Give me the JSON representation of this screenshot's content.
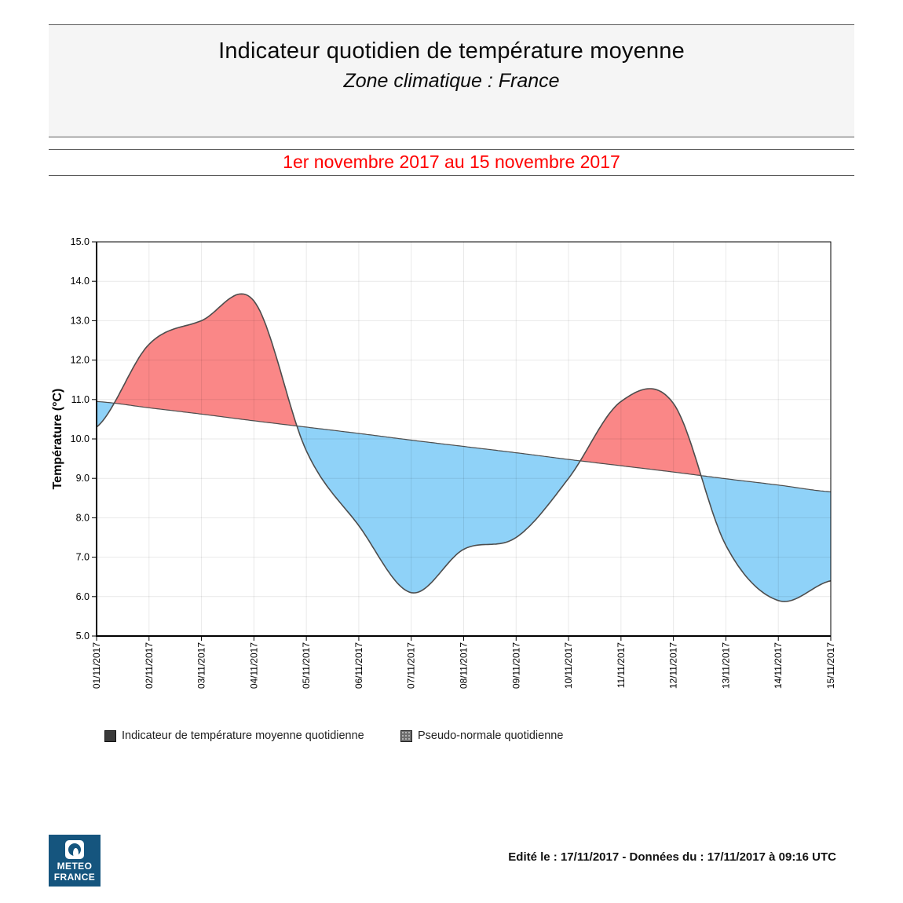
{
  "header": {
    "title": "Indicateur quotidien de température moyenne",
    "subtitle": "Zone climatique : France"
  },
  "period": {
    "label": "1er novembre 2017 au 15 novembre 2017",
    "color": "#ff0000"
  },
  "chart_data": {
    "type": "area",
    "x": [
      "01/11/2017",
      "02/11/2017",
      "03/11/2017",
      "04/11/2017",
      "05/11/2017",
      "06/11/2017",
      "07/11/2017",
      "08/11/2017",
      "09/11/2017",
      "10/11/2017",
      "11/11/2017",
      "12/11/2017",
      "13/11/2017",
      "14/11/2017",
      "15/11/2017"
    ],
    "series": [
      {
        "name": "Indicateur de température moyenne quotidienne",
        "values": [
          10.3,
          12.4,
          13.0,
          13.5,
          9.7,
          7.8,
          6.1,
          7.2,
          7.5,
          9.0,
          10.95,
          10.9,
          7.3,
          5.9,
          6.4
        ]
      },
      {
        "name": "Pseudo-normale quotidienne",
        "values": [
          10.95,
          10.79,
          10.63,
          10.46,
          10.3,
          10.14,
          9.97,
          9.81,
          9.65,
          9.48,
          9.32,
          9.16,
          8.99,
          8.83,
          8.66
        ]
      }
    ],
    "title": "Indicateur quotidien de température moyenne",
    "xlabel": "",
    "ylabel": "Température (°C)",
    "ylim": [
      5,
      15
    ],
    "ytick_step": 1,
    "grid": true,
    "legend_position": "bottom",
    "colors": {
      "fill_above_normal": "#fa8787",
      "fill_below_normal": "#8fd2f8",
      "line_stroke": "#4d4d4d",
      "grid_rgba": "rgba(0,0,0,0.085)",
      "axis": "#000000"
    }
  },
  "legend": {
    "items": [
      {
        "label": "Indicateur de température moyenne quotidienne"
      },
      {
        "label": "Pseudo-normale quotidienne"
      }
    ]
  },
  "logo": {
    "line1": "METEO",
    "line2": "FRANCE",
    "bg": "#15557e"
  },
  "footer": {
    "edited": "Edité le : 17/11/2017 - Données du : 17/11/2017 à 09:16 UTC"
  }
}
